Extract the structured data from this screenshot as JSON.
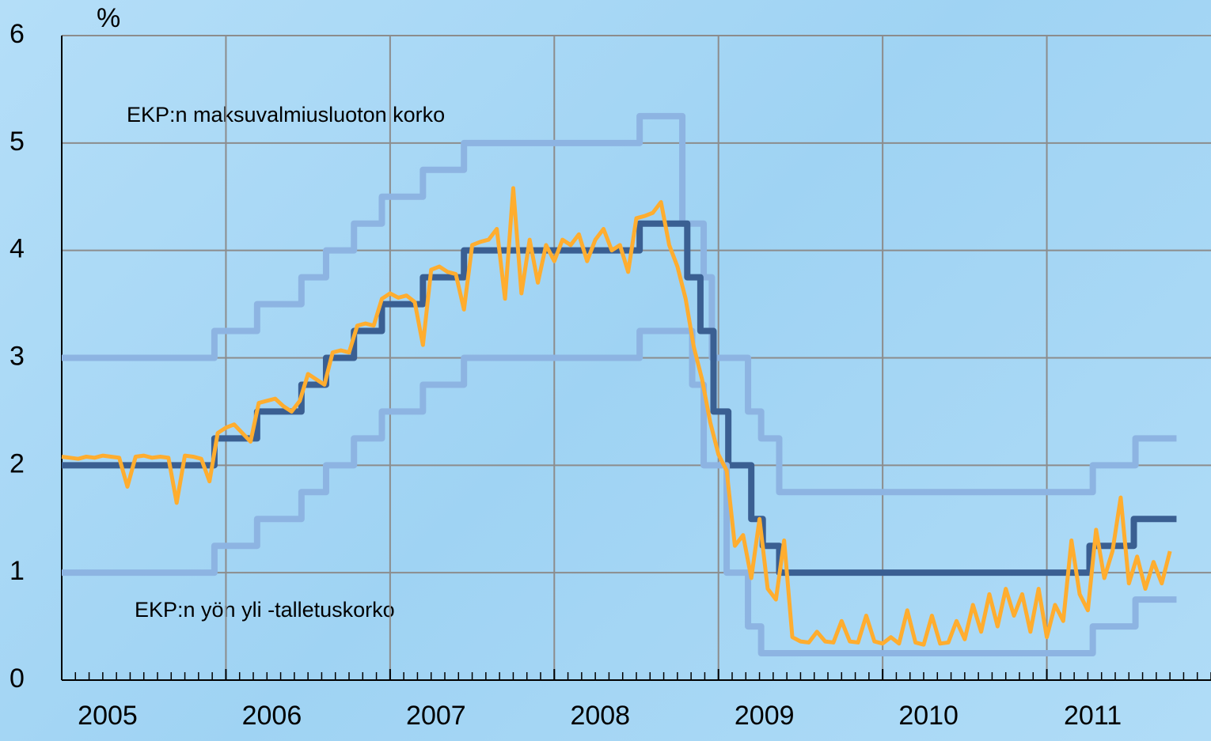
{
  "chart_data": {
    "type": "line",
    "y_label": "%",
    "annotations": [
      "EKP:n maksuvalmiusluoton korko",
      "EKP:n yön yli -talletuskorko"
    ],
    "xlim": [
      2005,
      2012
    ],
    "xticks": [
      2005,
      2006,
      2007,
      2008,
      2009,
      2010,
      2011
    ],
    "ylim": [
      0,
      6
    ],
    "yticks": [
      0,
      1,
      2,
      3,
      4,
      5,
      6
    ],
    "grid": true,
    "series": [
      {
        "color": "#8db4e2",
        "step": true,
        "x": [
          2005.0,
          2005.93,
          2006.19,
          2006.46,
          2006.61,
          2006.78,
          2006.95,
          2007.2,
          2007.45,
          2008.52,
          2008.78,
          2008.91,
          2008.96,
          2009.18,
          2009.26,
          2009.37,
          2011.28,
          2011.54,
          2011.79
        ],
        "values": [
          3.0,
          3.25,
          3.5,
          3.75,
          4.0,
          4.25,
          4.5,
          4.75,
          5.0,
          5.25,
          4.25,
          3.75,
          3.0,
          2.5,
          2.25,
          1.75,
          2.0,
          2.25,
          2.25
        ]
      },
      {
        "color": "#3a5f92",
        "step": true,
        "x": [
          2005.0,
          2005.93,
          2006.19,
          2006.46,
          2006.61,
          2006.78,
          2006.95,
          2007.2,
          2007.45,
          2008.52,
          2008.81,
          2008.89,
          2008.97,
          2009.06,
          2009.2,
          2009.27,
          2009.37,
          2011.26,
          2011.53,
          2011.79
        ],
        "values": [
          2.0,
          2.25,
          2.5,
          2.75,
          3.0,
          3.25,
          3.5,
          3.75,
          4.0,
          4.25,
          3.75,
          3.25,
          2.5,
          2.0,
          1.5,
          1.25,
          1.0,
          1.25,
          1.5,
          1.5
        ]
      },
      {
        "color": "#8db4e2",
        "step": true,
        "x": [
          2005.0,
          2005.93,
          2006.19,
          2006.46,
          2006.61,
          2006.78,
          2006.95,
          2007.2,
          2007.45,
          2008.52,
          2008.84,
          2008.91,
          2009.05,
          2009.18,
          2009.26,
          2011.28,
          2011.54,
          2011.79
        ],
        "values": [
          1.0,
          1.25,
          1.5,
          1.75,
          2.0,
          2.25,
          2.5,
          2.75,
          3.0,
          3.25,
          2.75,
          2.0,
          1.0,
          0.5,
          0.25,
          0.5,
          0.75,
          0.75
        ]
      },
      {
        "color": "#ffad2f",
        "step": false,
        "x": [
          2005.0,
          2005.05,
          2005.1,
          2005.15,
          2005.2,
          2005.25,
          2005.3,
          2005.35,
          2005.4,
          2005.45,
          2005.5,
          2005.55,
          2005.6,
          2005.65,
          2005.7,
          2005.75,
          2005.8,
          2005.85,
          2005.9,
          2005.95,
          2006.0,
          2006.05,
          2006.1,
          2006.15,
          2006.2,
          2006.25,
          2006.3,
          2006.35,
          2006.4,
          2006.45,
          2006.5,
          2006.55,
          2006.6,
          2006.65,
          2006.7,
          2006.75,
          2006.8,
          2006.85,
          2006.9,
          2006.95,
          2007.0,
          2007.05,
          2007.1,
          2007.15,
          2007.2,
          2007.25,
          2007.3,
          2007.35,
          2007.4,
          2007.45,
          2007.5,
          2007.55,
          2007.6,
          2007.65,
          2007.7,
          2007.75,
          2007.8,
          2007.85,
          2007.9,
          2007.95,
          2008.0,
          2008.05,
          2008.1,
          2008.15,
          2008.2,
          2008.25,
          2008.3,
          2008.35,
          2008.4,
          2008.45,
          2008.5,
          2008.55,
          2008.6,
          2008.65,
          2008.7,
          2008.75,
          2008.8,
          2008.85,
          2008.9,
          2008.95,
          2009.0,
          2009.05,
          2009.1,
          2009.15,
          2009.2,
          2009.25,
          2009.3,
          2009.35,
          2009.4,
          2009.45,
          2009.5,
          2009.55,
          2009.6,
          2009.65,
          2009.7,
          2009.75,
          2009.8,
          2009.85,
          2009.9,
          2009.95,
          2010.0,
          2010.05,
          2010.1,
          2010.15,
          2010.2,
          2010.25,
          2010.3,
          2010.35,
          2010.4,
          2010.45,
          2010.5,
          2010.55,
          2010.6,
          2010.65,
          2010.7,
          2010.75,
          2010.8,
          2010.85,
          2010.9,
          2010.95,
          2011.0,
          2011.05,
          2011.1,
          2011.15,
          2011.2,
          2011.25,
          2011.3,
          2011.35,
          2011.4,
          2011.45,
          2011.5,
          2011.55,
          2011.6,
          2011.65,
          2011.7,
          2011.75
        ],
        "values": [
          2.08,
          2.07,
          2.06,
          2.08,
          2.07,
          2.09,
          2.08,
          2.07,
          1.8,
          2.08,
          2.09,
          2.07,
          2.08,
          2.07,
          1.65,
          2.09,
          2.08,
          2.06,
          1.85,
          2.3,
          2.35,
          2.38,
          2.3,
          2.22,
          2.58,
          2.6,
          2.62,
          2.55,
          2.5,
          2.6,
          2.85,
          2.8,
          2.75,
          3.05,
          3.07,
          3.05,
          3.3,
          3.32,
          3.3,
          3.55,
          3.6,
          3.56,
          3.58,
          3.52,
          3.12,
          3.82,
          3.85,
          3.8,
          3.78,
          3.45,
          4.05,
          4.08,
          4.1,
          4.2,
          3.55,
          4.58,
          3.6,
          4.1,
          3.7,
          4.05,
          3.9,
          4.1,
          4.05,
          4.15,
          3.9,
          4.1,
          4.2,
          4.0,
          4.05,
          3.8,
          4.3,
          4.32,
          4.35,
          4.45,
          4.05,
          3.85,
          3.55,
          3.1,
          2.8,
          2.4,
          2.1,
          1.95,
          1.25,
          1.35,
          0.95,
          1.5,
          0.85,
          0.75,
          1.3,
          0.4,
          0.36,
          0.35,
          0.45,
          0.36,
          0.35,
          0.55,
          0.36,
          0.35,
          0.6,
          0.36,
          0.34,
          0.4,
          0.34,
          0.65,
          0.35,
          0.33,
          0.6,
          0.34,
          0.35,
          0.55,
          0.38,
          0.7,
          0.45,
          0.8,
          0.5,
          0.85,
          0.6,
          0.8,
          0.45,
          0.85,
          0.4,
          0.7,
          0.55,
          1.3,
          0.8,
          0.65,
          1.4,
          0.95,
          1.2,
          1.7,
          0.9,
          1.15,
          0.85,
          1.1,
          0.9,
          1.2
        ]
      }
    ]
  }
}
